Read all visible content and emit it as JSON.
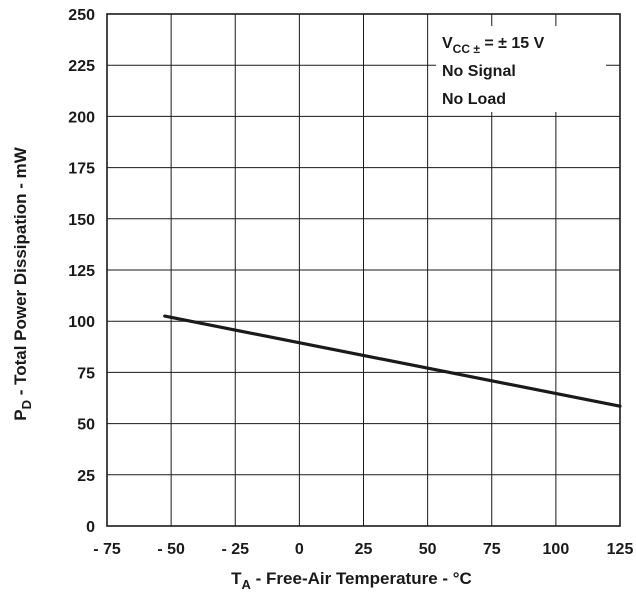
{
  "chart_data": {
    "type": "line",
    "xlabel": {
      "main": "T",
      "sub": "A",
      "rest": " - Free-Air Temperature - °C"
    },
    "ylabel": {
      "main": "P",
      "sub": "D",
      "rest": " - Total Power Dissipation - mW"
    },
    "xlim": [
      -75,
      125
    ],
    "ylim": [
      0,
      250
    ],
    "xticks": [
      -75,
      -50,
      -25,
      0,
      25,
      50,
      75,
      100,
      125
    ],
    "xtick_labels": [
      "- 75",
      "- 50",
      "- 25",
      "0",
      "25",
      "50",
      "75",
      "100",
      "125"
    ],
    "yticks": [
      0,
      25,
      50,
      75,
      100,
      125,
      150,
      175,
      200,
      225,
      250
    ],
    "ytick_labels": [
      "0",
      "25",
      "50",
      "75",
      "100",
      "125",
      "150",
      "175",
      "200",
      "225",
      "250"
    ],
    "grid": true,
    "series": [
      {
        "x": [
          -52.5,
          125
        ],
        "y": [
          102.5,
          58.5
        ]
      }
    ],
    "annotation": {
      "condition": {
        "main": "V",
        "sub": "CC ±",
        "rest": " = ± 15 V"
      },
      "lines": [
        "No Signal",
        "No Load"
      ],
      "placement": "top-right"
    },
    "colors": {
      "line": "#1a1a1a",
      "grid": "#1a1a1a",
      "background": "#ffffff"
    }
  }
}
